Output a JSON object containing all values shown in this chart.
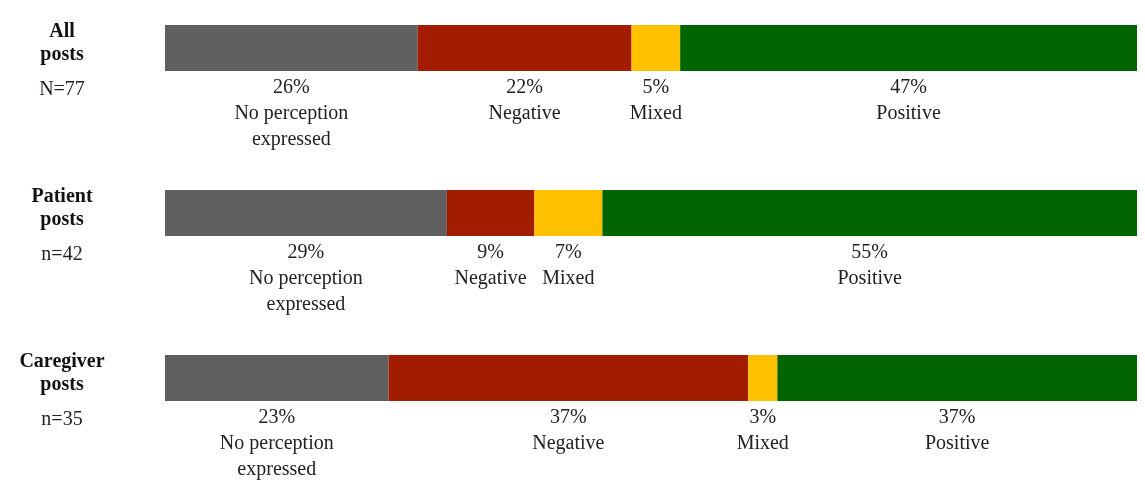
{
  "chart_data": {
    "type": "bar",
    "orientation": "horizontal",
    "stacked": true,
    "categories": [
      "All posts",
      "Patient posts",
      "Caregiver posts"
    ],
    "annotations": [
      "N=77",
      "n=42",
      "n=35"
    ],
    "series": [
      {
        "name": "No perception expressed",
        "color": "#5f5f5f",
        "values": [
          26,
          29,
          23
        ],
        "value_labels": [
          "26%",
          "29%",
          "23%"
        ]
      },
      {
        "name": "Negative",
        "color": "#a21c00",
        "values": [
          22,
          9,
          37
        ],
        "value_labels": [
          "22%",
          "9%",
          "37%"
        ]
      },
      {
        "name": "Mixed",
        "color": "#ffc000",
        "values": [
          5,
          7,
          3
        ],
        "value_labels": [
          "5%",
          "7%",
          "3%"
        ]
      },
      {
        "name": "Positive",
        "color": "#006400",
        "values": [
          47,
          55,
          37
        ],
        "value_labels": [
          "47%",
          "55%",
          "37%"
        ]
      }
    ]
  }
}
